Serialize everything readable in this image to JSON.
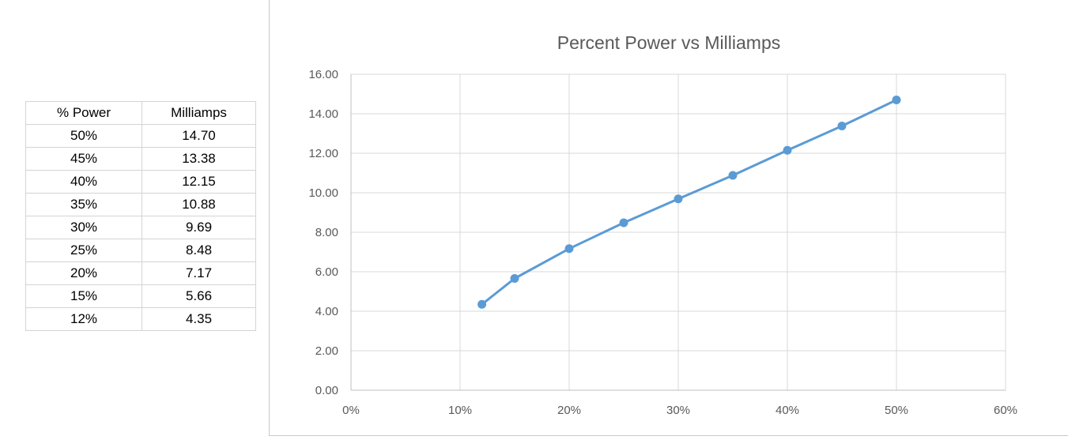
{
  "table": {
    "headers": [
      "% Power",
      "Milliamps"
    ],
    "rows": [
      [
        "50%",
        "14.70"
      ],
      [
        "45%",
        "13.38"
      ],
      [
        "40%",
        "12.15"
      ],
      [
        "35%",
        "10.88"
      ],
      [
        "30%",
        "9.69"
      ],
      [
        "25%",
        "8.48"
      ],
      [
        "20%",
        "7.17"
      ],
      [
        "15%",
        "5.66"
      ],
      [
        "12%",
        "4.35"
      ]
    ]
  },
  "chart_data": {
    "type": "line",
    "title": "Percent Power vs Milliamps",
    "xlabel": "",
    "ylabel": "",
    "x": [
      0.12,
      0.15,
      0.2,
      0.25,
      0.3,
      0.35,
      0.4,
      0.45,
      0.5
    ],
    "series": [
      {
        "values": [
          4.35,
          5.66,
          7.17,
          8.48,
          9.69,
          10.88,
          12.15,
          13.38,
          14.7
        ],
        "color": "#5b9bd5"
      }
    ],
    "xlim": [
      0,
      0.6
    ],
    "ylim": [
      0,
      16
    ],
    "x_ticks": [
      0,
      0.1,
      0.2,
      0.3,
      0.4,
      0.5,
      0.6
    ],
    "x_tick_labels": [
      "0%",
      "10%",
      "20%",
      "30%",
      "40%",
      "50%",
      "60%"
    ],
    "y_ticks": [
      0,
      2,
      4,
      6,
      8,
      10,
      12,
      14,
      16
    ],
    "y_tick_labels": [
      "0.00",
      "2.00",
      "4.00",
      "6.00",
      "8.00",
      "10.00",
      "12.00",
      "14.00",
      "16.00"
    ],
    "grid": true,
    "markers": true,
    "legend": "none"
  }
}
